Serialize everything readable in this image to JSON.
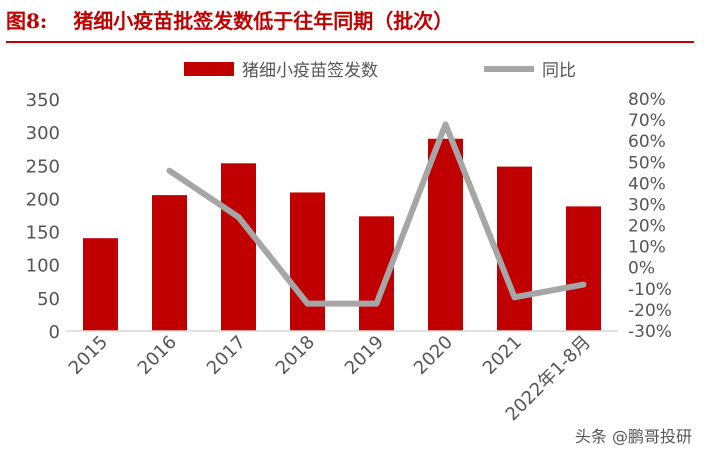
{
  "header": {
    "figure_number": "图8:",
    "figure_title": "猪细小疫苗批签发数低于往年同期（批次）"
  },
  "watermark": "头条 @鹏哥投研",
  "colors": {
    "bar": "#c00000",
    "line": "#a6a6a6",
    "title": "#c00000"
  },
  "chart_data": {
    "type": "bar",
    "categories": [
      "2015",
      "2016",
      "2017",
      "2018",
      "2019",
      "2020",
      "2021",
      "2022年1-8月"
    ],
    "series": [
      {
        "name": "猪细小疫苗签发数",
        "type": "bar",
        "axis": "left",
        "values": [
          140,
          205,
          253,
          209,
          173,
          290,
          248,
          188
        ]
      },
      {
        "name": "同比",
        "type": "line",
        "axis": "right",
        "values": [
          null,
          0.46,
          0.24,
          -0.17,
          -0.17,
          0.68,
          -0.14,
          -0.08
        ]
      }
    ],
    "y_left": {
      "min": 0,
      "max": 350,
      "ticks": [
        "0",
        "50",
        "100",
        "150",
        "200",
        "250",
        "300",
        "350"
      ]
    },
    "y_right": {
      "min": -0.3,
      "max": 0.8,
      "ticks": [
        "-30%",
        "-20%",
        "-10%",
        "0%",
        "10%",
        "20%",
        "30%",
        "40%",
        "50%",
        "60%",
        "70%",
        "80%"
      ]
    },
    "legend_position": "top",
    "grid": false
  }
}
